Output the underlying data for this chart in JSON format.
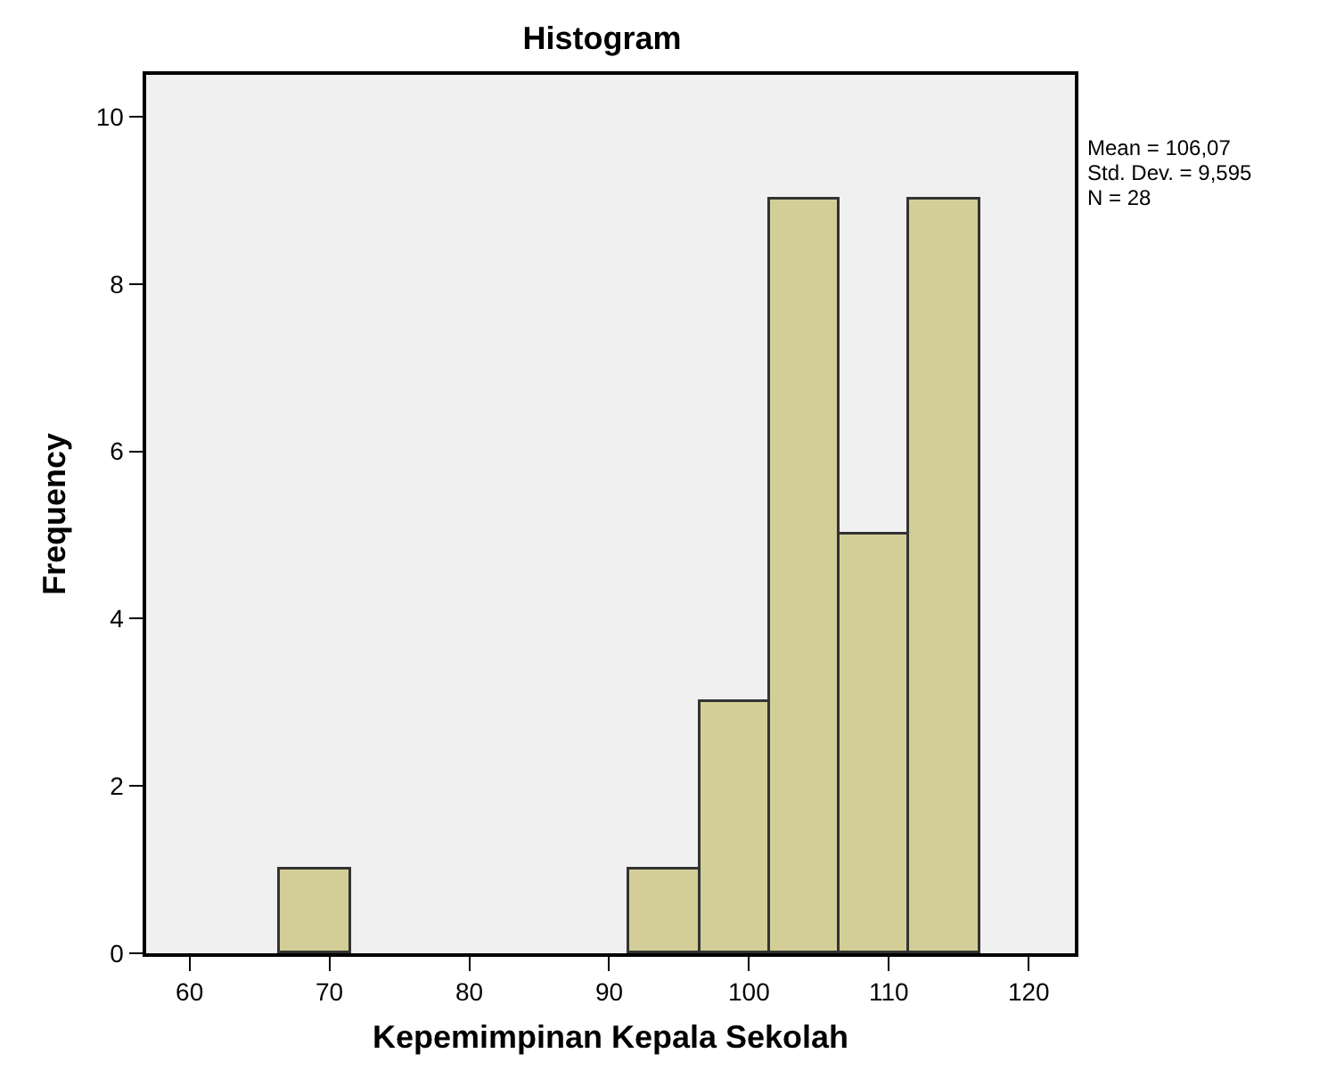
{
  "chart_data": {
    "type": "histogram",
    "title": "Histogram",
    "xlabel": "Kepemimpinan Kepala Sekolah",
    "ylabel": "Frequency",
    "bins": [
      66.5,
      71.5,
      76.5,
      81.5,
      86.5,
      91.5,
      96.5,
      101.5,
      106.5,
      111.5,
      116.5
    ],
    "values": [
      1,
      0,
      0,
      0,
      0,
      1,
      3,
      9,
      5,
      9
    ],
    "color": "#d3ce97",
    "xlim": [
      56.9,
      123.3
    ],
    "xticks": [
      60,
      70,
      80,
      90,
      100,
      110,
      120
    ],
    "ylim": [
      0,
      10.5
    ],
    "yticks": [
      0,
      2,
      4,
      6,
      8,
      10
    ],
    "annotations": [
      "Mean = 106,07",
      "Std. Dev. = 9,595",
      "N = 28"
    ]
  }
}
